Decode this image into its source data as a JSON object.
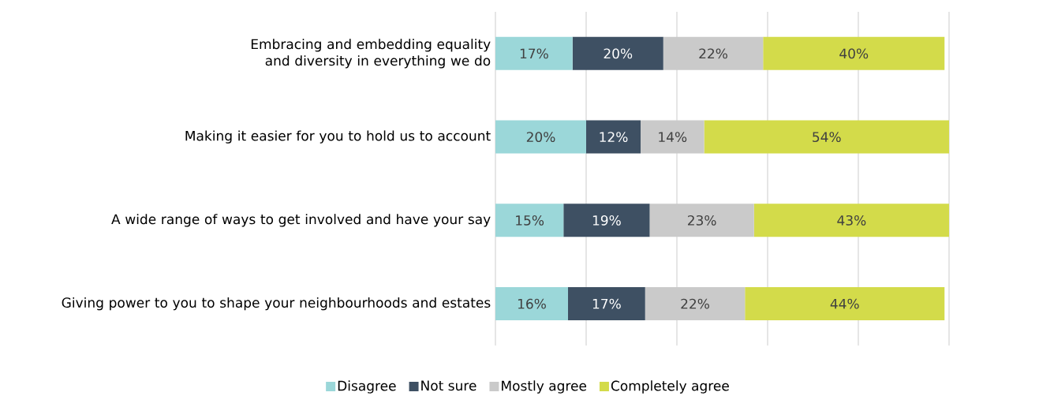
{
  "chart_data": {
    "type": "bar",
    "orientation": "horizontal",
    "stacked": true,
    "categories": [
      "Embracing and embedding equality and diversity in everything we do",
      "Making it easier for you to hold us to account",
      "A wide range of ways to get involved and have your say",
      "Giving power to you to shape your neighbourhoods and estates"
    ],
    "series": [
      {
        "name": "Disagree",
        "color": "#9bd7d9",
        "values": [
          17,
          20,
          15,
          16
        ],
        "value_labels": [
          "17%",
          "20%",
          "15%",
          "16%"
        ]
      },
      {
        "name": "Not sure",
        "color": "#3e5063",
        "values": [
          20,
          12,
          19,
          17
        ],
        "value_labels": [
          "20%",
          "12%",
          "19%",
          "17%"
        ]
      },
      {
        "name": "Mostly agree",
        "color": "#cacaca",
        "values": [
          22,
          14,
          23,
          22
        ],
        "value_labels": [
          "22%",
          "14%",
          "23%",
          "22%"
        ]
      },
      {
        "name": "Completely agree",
        "color": "#d3db4a",
        "values": [
          40,
          54,
          43,
          44
        ],
        "value_labels": [
          "40%",
          "54%",
          "43%",
          "44%"
        ]
      }
    ],
    "xlim": [
      0,
      100
    ],
    "xticks": [
      {
        "value": 0,
        "label": null
      },
      {
        "value": 20,
        "label": null
      },
      {
        "value": 40,
        "label": null
      },
      {
        "value": 60,
        "label": null
      },
      {
        "value": 80,
        "label": null
      },
      {
        "value": 100,
        "label": null
      }
    ],
    "grid": "x",
    "legend": "bottom"
  }
}
